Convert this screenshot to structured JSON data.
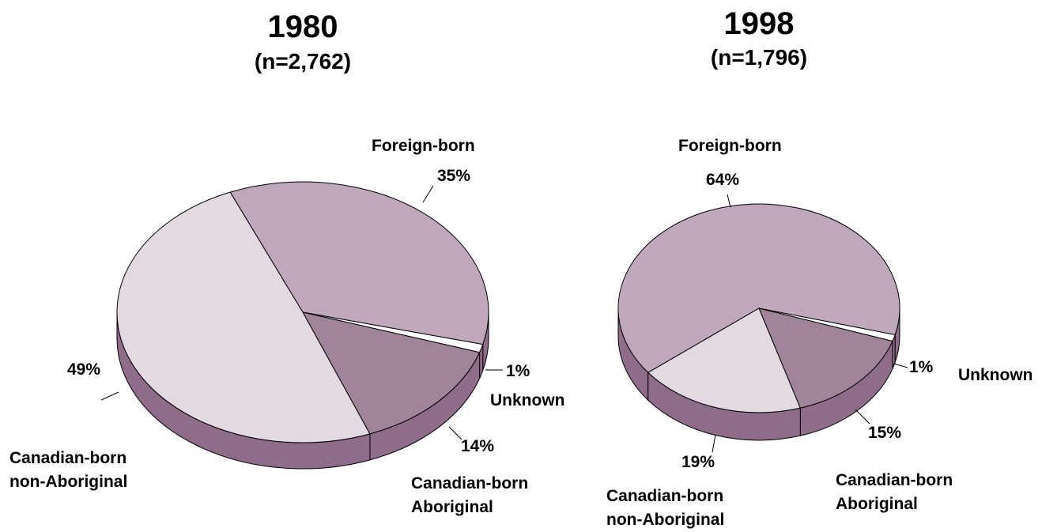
{
  "chart_data": [
    {
      "type": "pie",
      "title": "1980",
      "subtitle": "(n=2,762)",
      "categories": [
        "Foreign-born",
        "Unknown",
        "Canadian-born Aboriginal",
        "Canadian-born non-Aboriginal"
      ],
      "values": [
        35,
        1,
        14,
        49
      ],
      "value_labels": [
        "35%",
        "1%",
        "14%",
        "49%"
      ],
      "colors": [
        "#bfa8bc",
        "#ffffff",
        "#a0849a",
        "#e3d9e1"
      ],
      "side_color": "#8f6c89"
    },
    {
      "type": "pie",
      "title": "1998",
      "subtitle": "(n=1,796)",
      "categories": [
        "Foreign-born",
        "Unknown",
        "Canadian-born Aboriginal",
        "Canadian-born non-Aboriginal"
      ],
      "values": [
        64,
        1,
        15,
        19
      ],
      "value_labels": [
        "64%",
        "1%",
        "15%",
        "19%"
      ],
      "colors": [
        "#bfa8bc",
        "#ffffff",
        "#a0849a",
        "#e3d9e1"
      ],
      "side_color": "#8f6c89"
    }
  ]
}
